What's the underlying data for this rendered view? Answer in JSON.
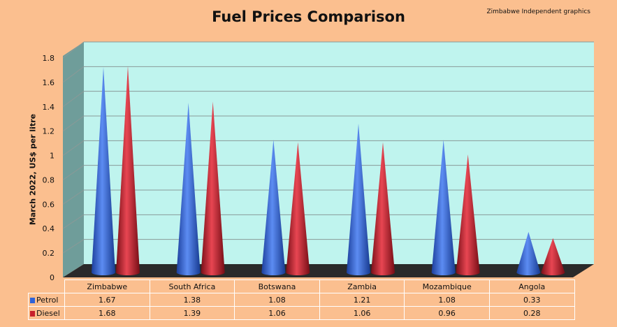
{
  "chart_data": {
    "type": "bar",
    "subtype": "3d-cone",
    "title": "Fuel Prices Comparison",
    "credit": "Zimbabwe Independent graphics",
    "ylabel": "March  2022, US$ per litre",
    "xlabel": "",
    "ylim": [
      0,
      1.8
    ],
    "yticks": [
      "0",
      "0.2",
      "0.4",
      "0.6",
      "0.8",
      "1",
      "1.2",
      "1.4",
      "1.6",
      "1.8"
    ],
    "grid": true,
    "legend_placement": "data-table",
    "categories": [
      "Zimbabwe",
      "South Africa",
      "Botswana",
      "Zambia",
      "Mozambique",
      "Angola"
    ],
    "series": [
      {
        "name": "Petrol",
        "color": "#2f63d8",
        "values": [
          1.67,
          1.38,
          1.08,
          1.21,
          1.08,
          0.33
        ],
        "labels": [
          "1.67",
          "1.38",
          "1.08",
          "1.21",
          "1.08",
          "0.33"
        ]
      },
      {
        "name": "Diesel",
        "color": "#c8202c",
        "values": [
          1.68,
          1.39,
          1.06,
          1.06,
          0.96,
          0.28
        ],
        "labels": [
          "1.68",
          "1.39",
          "1.06",
          "1.06",
          "0.96",
          "0.28"
        ]
      }
    ]
  }
}
